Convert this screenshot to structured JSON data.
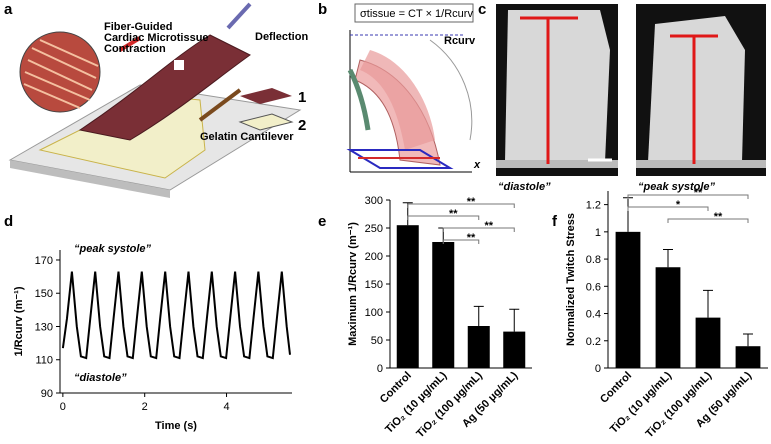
{
  "panels": {
    "labels": [
      "a",
      "b",
      "c",
      "d",
      "e",
      "f"
    ],
    "a": {
      "fiber": "Fiber-Guided",
      "tissue": "Cardiac Microtissue",
      "contraction": "Contraction",
      "deflection": "Deflection",
      "cantilever": "Gelatin Cantilever",
      "layer1": "1",
      "layer2": "2"
    },
    "b": {
      "equation": "σtissue = CT × 1/Rcurv",
      "radius": "Rcurv",
      "axis": "x"
    },
    "c": {
      "left": "“diastole”",
      "right": "“peak systole”"
    }
  },
  "chart_data": [
    {
      "type": "line",
      "xlabel": "Time (s)",
      "ylabel": "1/Rcurv (m⁻¹)",
      "color": "#000000",
      "annotations": [
        "“peak systole”",
        "“diastole”"
      ],
      "x": [
        0,
        0.1,
        0.22,
        0.34,
        0.44,
        0.57,
        0.67,
        0.79,
        0.91,
        1.01,
        1.14,
        1.24,
        1.36,
        1.48,
        1.58,
        1.71,
        1.81,
        1.93,
        2.05,
        2.15,
        2.28,
        2.38,
        2.5,
        2.62,
        2.72,
        2.85,
        2.95,
        3.07,
        3.19,
        3.29,
        3.42,
        3.52,
        3.64,
        3.76,
        3.86,
        3.99,
        4.09,
        4.21,
        4.33,
        4.43,
        4.56,
        4.66,
        4.78,
        4.9,
        5.0,
        5.13,
        5.23,
        5.35,
        5.47,
        5.55
      ],
      "values": [
        117,
        135,
        163,
        130,
        112,
        111,
        135,
        163,
        130,
        112,
        111,
        135,
        163,
        130,
        112,
        111,
        135,
        163,
        130,
        112,
        111,
        135,
        163,
        130,
        112,
        111,
        135,
        163,
        130,
        112,
        111,
        135,
        163,
        130,
        112,
        111,
        135,
        163,
        130,
        112,
        111,
        135,
        163,
        130,
        112,
        111,
        135,
        163,
        130,
        113
      ],
      "xlim": [
        -0.07,
        5.6
      ],
      "xticks": [
        0,
        2,
        4
      ],
      "ylim": [
        90,
        176
      ],
      "yticks": [
        90,
        110,
        130,
        150,
        170
      ]
    },
    {
      "type": "bar",
      "ylabel": "Maximum 1/Rcurv (m⁻¹)",
      "color": "#000000",
      "categories": [
        "Control",
        "TiO₂ (10 μg/mL)",
        "TiO₂ (100 μg/mL)",
        "Ag (50 μg/mL)"
      ],
      "values": [
        255,
        225,
        75,
        65
      ],
      "errors": [
        40,
        25,
        35,
        40
      ],
      "ylim": [
        0,
        300
      ],
      "yticks": [
        0,
        50,
        100,
        150,
        200,
        250,
        300
      ],
      "significance": [
        {
          "from": 0,
          "to": 3,
          "label": "**"
        },
        {
          "from": 0,
          "to": 2,
          "label": "**"
        },
        {
          "from": 1,
          "to": 3,
          "label": "**"
        },
        {
          "from": 1,
          "to": 2,
          "label": "**"
        }
      ]
    },
    {
      "type": "bar",
      "ylabel": "Normalized Twitch Stress",
      "color": "#000000",
      "categories": [
        "Control",
        "TiO₂ (10 μg/mL)",
        "TiO₂ (100 μg/mL)",
        "Ag (50 μg/mL)"
      ],
      "values": [
        1.0,
        0.74,
        0.37,
        0.16
      ],
      "errors": [
        0.25,
        0.13,
        0.2,
        0.09
      ],
      "ylim": [
        0,
        1.3
      ],
      "yticks": [
        0,
        0.2,
        0.4,
        0.6,
        0.8,
        1,
        1.2
      ],
      "significance": [
        {
          "from": 0,
          "to": 3,
          "label": "**"
        },
        {
          "from": 0,
          "to": 2,
          "label": "*"
        },
        {
          "from": 1,
          "to": 3,
          "label": "**"
        }
      ]
    }
  ]
}
